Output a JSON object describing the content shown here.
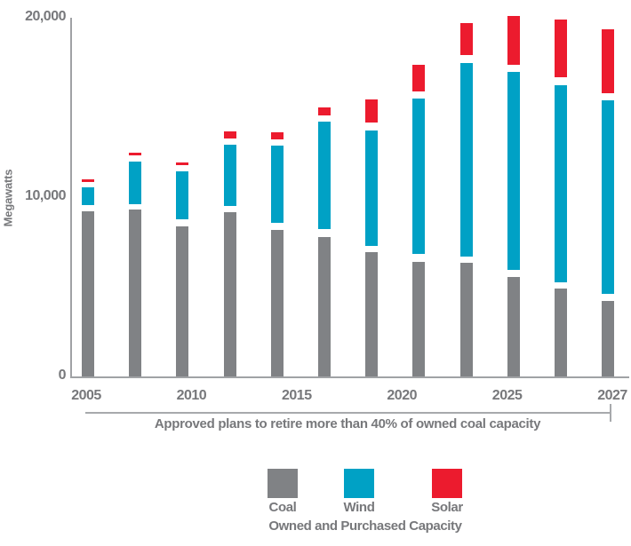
{
  "colors": {
    "coal": "#808285",
    "wind": "#00A1C5",
    "solar": "#EC1B2E",
    "text": "#77787B",
    "axis": "#A0A2A5"
  },
  "chart_data": {
    "type": "bar",
    "stacked": true,
    "ylabel": "Megawatts",
    "y_ticks": [
      0,
      10000,
      20000
    ],
    "y_tick_labels": [
      "0",
      "10,000",
      "20,000"
    ],
    "ylim": [
      0,
      20300
    ],
    "x_tick_labels": [
      "2005",
      "2010",
      "2015",
      "2020",
      "2025",
      "2027"
    ],
    "annotation": "Approved plans to retire more than 40% of owned coal capacity",
    "legend_title": "Owned and Purchased Capacity",
    "legend": [
      {
        "label": "Coal",
        "color": "#808285"
      },
      {
        "label": "Wind",
        "color": "#00A1C5"
      },
      {
        "label": "Solar",
        "color": "#EC1B2E"
      }
    ],
    "series": [
      {
        "name": "Coal",
        "values": [
          9200,
          9300,
          8350,
          9150,
          8150,
          7750,
          6950,
          6400,
          6350,
          5550,
          4900,
          4200
        ]
      },
      {
        "name": "Wind",
        "values": [
          1350,
          2700,
          3100,
          3750,
          4700,
          6450,
          6750,
          9100,
          11150,
          11450,
          11350,
          11200
        ]
      },
      {
        "name": "Solar",
        "values": [
          450,
          450,
          500,
          750,
          750,
          800,
          1750,
          1900,
          2200,
          3100,
          3650,
          3950
        ]
      }
    ],
    "totals": [
      11000,
      12450,
      11950,
      13650,
      13600,
      15000,
      15450,
      17400,
      19700,
      20100,
      19900,
      19350
    ],
    "bars": [
      {
        "coal": 9200,
        "wind": [
          9550,
          10550
        ],
        "solar": [
          10850,
          11000
        ]
      },
      {
        "coal": 9300,
        "wind": [
          9600,
          12000
        ],
        "solar": [
          12350,
          12500
        ]
      },
      {
        "coal": 8350,
        "wind": [
          8750,
          11450
        ],
        "solar": [
          11800,
          11950
        ]
      },
      {
        "coal": 9150,
        "wind": [
          9500,
          12900
        ],
        "solar": [
          13250,
          13650
        ]
      },
      {
        "coal": 8150,
        "wind": [
          8550,
          12850
        ],
        "solar": [
          13200,
          13600
        ]
      },
      {
        "coal": 7750,
        "wind": [
          8200,
          14200
        ],
        "solar": [
          14550,
          15000
        ]
      },
      {
        "coal": 6950,
        "wind": [
          7300,
          13700
        ],
        "solar": [
          14150,
          15450
        ]
      },
      {
        "coal": 6400,
        "wind": [
          6850,
          15500
        ],
        "solar": [
          15900,
          17400
        ]
      },
      {
        "coal": 6350,
        "wind": [
          6700,
          17500
        ],
        "solar": [
          17900,
          19700
        ]
      },
      {
        "coal": 5550,
        "wind": [
          5950,
          17000
        ],
        "solar": [
          17400,
          20100
        ]
      },
      {
        "coal": 4900,
        "wind": [
          5250,
          16250
        ],
        "solar": [
          16700,
          19900
        ]
      },
      {
        "coal": 4200,
        "wind": [
          4600,
          15400
        ],
        "solar": [
          15800,
          19350
        ]
      }
    ]
  }
}
